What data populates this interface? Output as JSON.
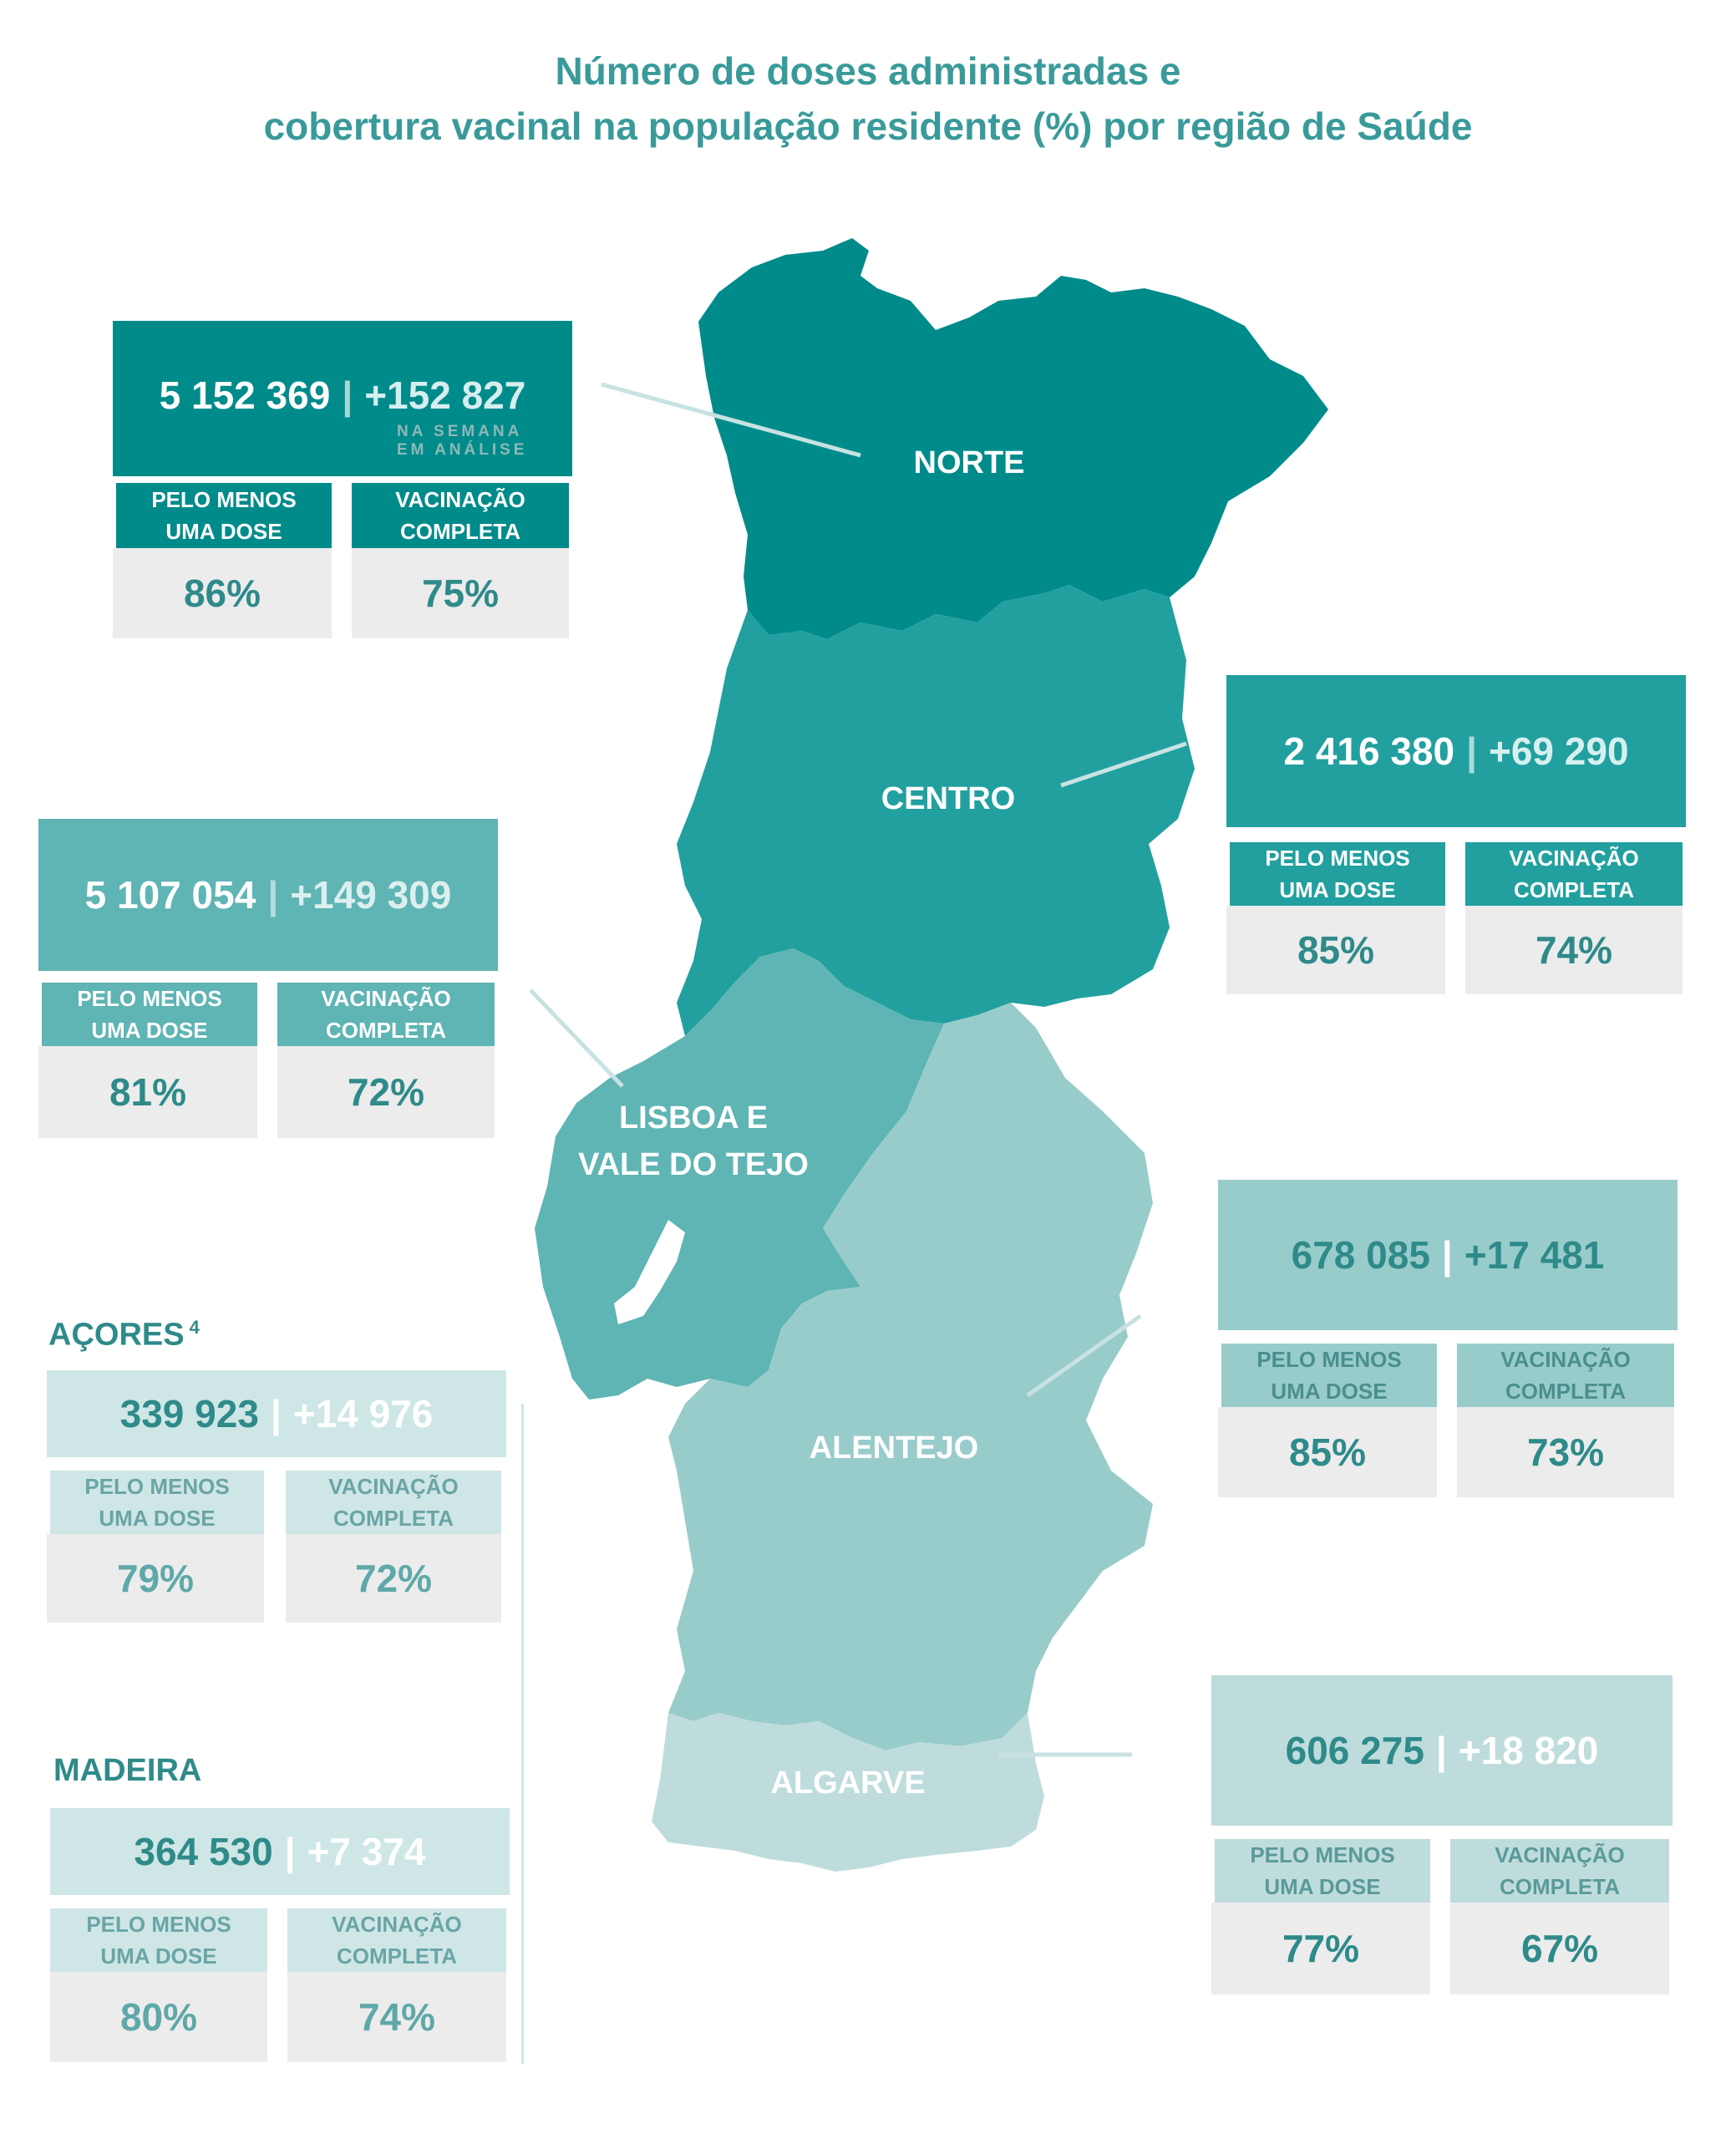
{
  "title": {
    "line1": "Número de doses administradas e",
    "line2": "cobertura vacinal na população residente (%) por região de Saúde"
  },
  "labels": {
    "at_least_one": "PELO MENOS\nUMA DOSE",
    "complete": "VACINAÇÃO\nCOMPLETA",
    "week_note": "NA SEMANA\nEM ANÁLISE",
    "separator": "|"
  },
  "regions": {
    "norte": {
      "name": "NORTE",
      "doses": "5 152 369",
      "weekly": "+152 827",
      "one_dose": "86%",
      "complete": "75%",
      "color": "#008b8b"
    },
    "centro": {
      "name": "CENTRO",
      "doses": "2 416 380",
      "weekly": "+69 290",
      "one_dose": "85%",
      "complete": "74%",
      "color": "#21a09f"
    },
    "lvt": {
      "name_line1": "LISBOA E",
      "name_line2": "VALE DO TEJO",
      "doses": "5 107 054",
      "weekly": "+149 309",
      "one_dose": "81%",
      "complete": "72%",
      "color": "#5fb4b4"
    },
    "alentejo": {
      "name": "ALENTEJO",
      "doses": "678 085",
      "weekly": "+17 481",
      "one_dose": "85%",
      "complete": "73%",
      "color": "#98cccb"
    },
    "algarve": {
      "name": "ALGARVE",
      "doses": "606 275",
      "weekly": "+18 820",
      "one_dose": "77%",
      "complete": "67%",
      "color": "#bfdcdc"
    }
  },
  "islands": {
    "acores": {
      "name": "AÇORES",
      "footnote": "4",
      "doses": "339 923",
      "weekly": "+14 976",
      "one_dose": "79%",
      "complete": "72%"
    },
    "madeira": {
      "name": "MADEIRA",
      "doses": "364 530",
      "weekly": "+7 374",
      "one_dose": "80%",
      "complete": "74%"
    }
  }
}
